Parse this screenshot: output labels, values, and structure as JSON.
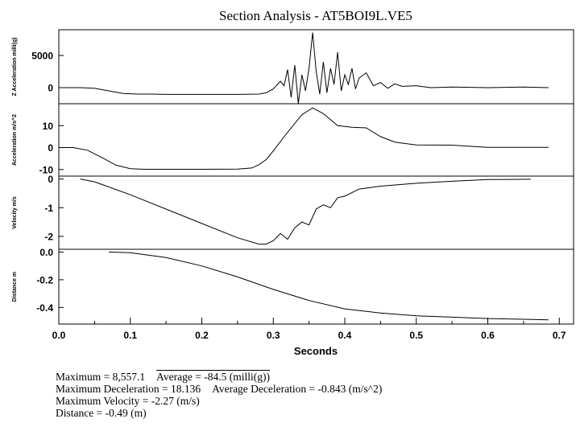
{
  "title": "Section Analysis  -  AT5BOI9L.VE5",
  "chart_data": {
    "type": "line",
    "title": "Section Analysis  -  AT5BOI9L.VE5",
    "xlabel": "Seconds",
    "xlim": [
      0.0,
      0.72
    ],
    "xticks": [
      "0.0",
      "0.1",
      "0.2",
      "0.3",
      "0.4",
      "0.5",
      "0.6",
      "0.7"
    ],
    "xtick_values": [
      0.0,
      0.1,
      0.2,
      0.3,
      0.4,
      0.5,
      0.6,
      0.7
    ],
    "panels": [
      {
        "ylabel": "Z Acceleration milli(g)",
        "ylim": [
          -2500,
          9000
        ],
        "yticks": [
          "5000",
          "0"
        ],
        "ytick_values": [
          5000,
          0
        ],
        "series": [
          {
            "x": [
              0.0,
              0.03,
              0.05,
              0.07,
              0.09,
              0.11,
              0.13,
              0.15,
              0.2,
              0.25,
              0.28,
              0.29,
              0.3,
              0.31,
              0.315,
              0.32,
              0.325,
              0.33,
              0.335,
              0.34,
              0.345,
              0.35,
              0.355,
              0.36,
              0.365,
              0.37,
              0.375,
              0.38,
              0.385,
              0.39,
              0.395,
              0.4,
              0.405,
              0.41,
              0.415,
              0.42,
              0.43,
              0.44,
              0.45,
              0.46,
              0.47,
              0.48,
              0.5,
              0.52,
              0.55,
              0.6,
              0.65,
              0.685
            ],
            "y": [
              0,
              0,
              -100,
              -500,
              -900,
              -1000,
              -1000,
              -1050,
              -1050,
              -1050,
              -1000,
              -800,
              -200,
              1000,
              300,
              2800,
              -1500,
              3500,
              -2500,
              2000,
              -500,
              3000,
              8557,
              2500,
              -1000,
              4000,
              -800,
              3000,
              500,
              5500,
              -500,
              2000,
              500,
              3000,
              -200,
              1500,
              2300,
              300,
              800,
              -100,
              600,
              200,
              300,
              0,
              100,
              0,
              100,
              0
            ]
          }
        ]
      },
      {
        "ylabel": "Acceleration m/s^2",
        "ylim": [
          -13,
          20
        ],
        "yticks": [
          "10",
          "0",
          "-10"
        ],
        "ytick_values": [
          10,
          0,
          -10
        ],
        "series": [
          {
            "x": [
              0.0,
              0.02,
              0.04,
              0.06,
              0.08,
              0.1,
              0.12,
              0.15,
              0.2,
              0.25,
              0.27,
              0.28,
              0.29,
              0.3,
              0.32,
              0.34,
              0.355,
              0.37,
              0.39,
              0.41,
              0.43,
              0.45,
              0.47,
              0.5,
              0.55,
              0.6,
              0.65,
              0.685
            ],
            "y": [
              0,
              0,
              -1.2,
              -4.5,
              -8,
              -9.6,
              -9.9,
              -9.9,
              -9.9,
              -9.8,
              -9.3,
              -7.8,
              -5.5,
              -1.5,
              7,
              15,
              18.1,
              15.5,
              10,
              9.3,
              9,
              5,
              2.5,
              1.2,
              1.1,
              0.1,
              0.1,
              0.1
            ]
          }
        ]
      },
      {
        "ylabel": "Velocity m/s",
        "ylim": [
          -2.45,
          0.1
        ],
        "yticks": [
          "0",
          "-1",
          "-2"
        ],
        "ytick_values": [
          0,
          -1,
          -2
        ],
        "series": [
          {
            "x": [
              0.03,
              0.05,
              0.1,
              0.15,
              0.2,
              0.25,
              0.28,
              0.29,
              0.3,
              0.31,
              0.32,
              0.33,
              0.34,
              0.35,
              0.36,
              0.37,
              0.38,
              0.39,
              0.4,
              0.42,
              0.45,
              0.5,
              0.55,
              0.6,
              0.66
            ],
            "y": [
              0,
              -0.1,
              -0.55,
              -1.05,
              -1.55,
              -2.05,
              -2.27,
              -2.27,
              -2.15,
              -1.9,
              -2.1,
              -1.7,
              -1.5,
              -1.6,
              -1.05,
              -0.9,
              -1.0,
              -0.65,
              -0.6,
              -0.35,
              -0.25,
              -0.15,
              -0.08,
              -0.02,
              -0.01
            ]
          }
        ]
      },
      {
        "ylabel": "Distance m",
        "ylim": [
          -0.52,
          0.02
        ],
        "yticks": [
          "0.0",
          "-0.2",
          "-0.4"
        ],
        "ytick_values": [
          0.0,
          -0.2,
          -0.4
        ],
        "series": [
          {
            "x": [
              0.07,
              0.1,
              0.15,
              0.2,
              0.25,
              0.3,
              0.35,
              0.4,
              0.45,
              0.5,
              0.55,
              0.6,
              0.65,
              0.685
            ],
            "y": [
              0,
              -0.005,
              -0.04,
              -0.1,
              -0.18,
              -0.27,
              -0.35,
              -0.41,
              -0.44,
              -0.46,
              -0.47,
              -0.48,
              -0.485,
              -0.49
            ]
          }
        ]
      }
    ],
    "grid": false,
    "line_color": "#000000"
  },
  "stats": {
    "maximum": "Maximum = 8,557.1",
    "average": "Average = -84.5 (milli(g))",
    "max_deceleration": "Maximum Deceleration = 18.136",
    "avg_deceleration": "Average Deceleration = -0.843 (m/s^2)",
    "max_velocity": "Maximum Velocity = -2.27 (m/s)",
    "distance": "Distance = -0.49 (m)"
  }
}
